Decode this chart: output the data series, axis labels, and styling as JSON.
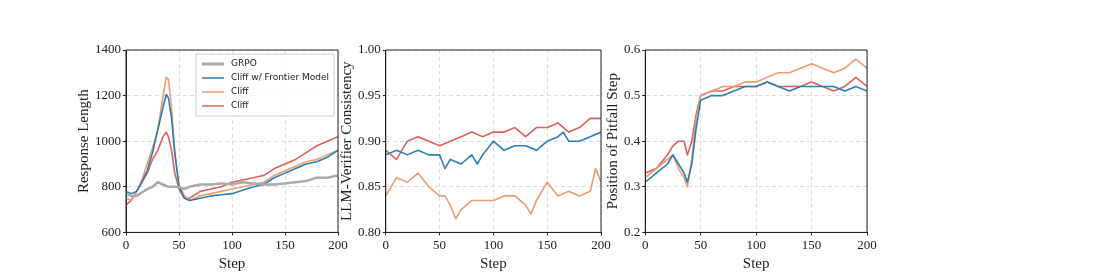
{
  "chart_data": [
    {
      "type": "line",
      "xlabel": "Step",
      "ylabel": "Response Length",
      "xlim": [
        0,
        200
      ],
      "xticks": [
        0,
        50,
        100,
        150,
        200
      ],
      "ylim": [
        600,
        1400
      ],
      "yticks": [
        600,
        800,
        1000,
        1200,
        1400
      ],
      "grid": true,
      "legend": "top right",
      "marker": "none",
      "line_style": "solid",
      "series": [
        {
          "name": "GRPO",
          "color": "#aaaaaa",
          "x": [
            0,
            5,
            10,
            15,
            20,
            25,
            30,
            35,
            40,
            45,
            50,
            55,
            60,
            70,
            80,
            90,
            100,
            110,
            120,
            130,
            140,
            150,
            160,
            170,
            180,
            190,
            200
          ],
          "values": [
            770,
            760,
            760,
            775,
            790,
            800,
            820,
            810,
            800,
            800,
            800,
            790,
            800,
            810,
            810,
            815,
            810,
            820,
            815,
            810,
            810,
            815,
            820,
            825,
            840,
            840,
            850
          ]
        },
        {
          "name": "Cliff w/ Frontier Model",
          "color": "#2a7fb5",
          "x": [
            0,
            5,
            10,
            15,
            20,
            25,
            30,
            35,
            38,
            40,
            43,
            46,
            50,
            55,
            60,
            70,
            80,
            90,
            100,
            110,
            120,
            130,
            140,
            150,
            160,
            170,
            180,
            190,
            200
          ],
          "values": [
            780,
            770,
            780,
            820,
            870,
            950,
            1050,
            1150,
            1205,
            1190,
            1100,
            950,
            800,
            750,
            740,
            750,
            760,
            765,
            770,
            785,
            800,
            810,
            840,
            860,
            880,
            900,
            910,
            930,
            960
          ]
        },
        {
          "name": "Cliff",
          "color": "#ee9b6e",
          "x": [
            0,
            5,
            10,
            15,
            20,
            25,
            30,
            35,
            38,
            40,
            43,
            46,
            50,
            55,
            60,
            70,
            80,
            90,
            100,
            110,
            120,
            130,
            140,
            150,
            160,
            170,
            180,
            190,
            200
          ],
          "values": [
            750,
            740,
            780,
            830,
            900,
            970,
            1050,
            1200,
            1280,
            1270,
            1150,
            950,
            810,
            760,
            740,
            760,
            770,
            780,
            790,
            800,
            810,
            820,
            850,
            870,
            890,
            910,
            920,
            940,
            960
          ]
        },
        {
          "name": "Cliff",
          "color": "#e0605f",
          "x": [
            0,
            5,
            10,
            15,
            20,
            25,
            30,
            35,
            38,
            40,
            43,
            46,
            50,
            55,
            60,
            70,
            80,
            90,
            100,
            110,
            120,
            130,
            140,
            150,
            160,
            170,
            180,
            190,
            200
          ],
          "values": [
            720,
            740,
            780,
            820,
            860,
            920,
            960,
            1020,
            1040,
            1020,
            960,
            860,
            790,
            750,
            750,
            780,
            790,
            800,
            820,
            830,
            840,
            850,
            880,
            900,
            920,
            950,
            980,
            1000,
            1020
          ]
        }
      ]
    },
    {
      "type": "line",
      "xlabel": "Step",
      "ylabel": "LLM-Verifier Consistency",
      "xlim": [
        0,
        200
      ],
      "xticks": [
        0,
        50,
        100,
        150,
        200
      ],
      "ylim": [
        0.8,
        1.0
      ],
      "yticks": [
        {
          "value": 0.8,
          "label": "0.80"
        },
        {
          "value": 0.85,
          "label": "0.85"
        },
        {
          "value": 0.9,
          "label": "0.90"
        },
        {
          "value": 0.95,
          "label": "0.95"
        },
        {
          "value": 1.0,
          "label": "1.00"
        }
      ],
      "grid": true,
      "marker": "none",
      "line_style": "solid",
      "series": [
        {
          "color": "#2a7fb5",
          "x": [
            0,
            10,
            20,
            30,
            40,
            50,
            55,
            60,
            70,
            80,
            85,
            90,
            100,
            110,
            120,
            130,
            140,
            150,
            160,
            165,
            170,
            180,
            190,
            200
          ],
          "values": [
            0.885,
            0.89,
            0.885,
            0.89,
            0.885,
            0.885,
            0.87,
            0.88,
            0.875,
            0.885,
            0.875,
            0.885,
            0.9,
            0.89,
            0.895,
            0.895,
            0.89,
            0.9,
            0.905,
            0.91,
            0.9,
            0.9,
            0.905,
            0.91
          ]
        },
        {
          "color": "#ee9b6e",
          "x": [
            0,
            10,
            20,
            30,
            40,
            50,
            55,
            60,
            65,
            70,
            80,
            90,
            100,
            110,
            120,
            130,
            135,
            140,
            150,
            160,
            170,
            180,
            190,
            195,
            200
          ],
          "values": [
            0.84,
            0.86,
            0.855,
            0.865,
            0.85,
            0.84,
            0.84,
            0.83,
            0.815,
            0.825,
            0.835,
            0.835,
            0.835,
            0.84,
            0.84,
            0.83,
            0.82,
            0.835,
            0.855,
            0.84,
            0.845,
            0.84,
            0.845,
            0.87,
            0.855
          ]
        },
        {
          "color": "#e0605f",
          "x": [
            0,
            10,
            20,
            30,
            40,
            50,
            60,
            70,
            80,
            90,
            100,
            110,
            120,
            130,
            140,
            150,
            160,
            170,
            180,
            190,
            200
          ],
          "values": [
            0.89,
            0.88,
            0.9,
            0.905,
            0.9,
            0.895,
            0.9,
            0.905,
            0.91,
            0.905,
            0.91,
            0.91,
            0.915,
            0.905,
            0.915,
            0.915,
            0.92,
            0.91,
            0.915,
            0.925,
            0.925
          ]
        }
      ]
    },
    {
      "type": "line",
      "xlabel": "Step",
      "ylabel": "Position of Pitfall Step",
      "xlim": [
        0,
        200
      ],
      "xticks": [
        0,
        50,
        100,
        150,
        200
      ],
      "ylim": [
        0.2,
        0.6
      ],
      "yticks": [
        0.2,
        0.3,
        0.4,
        0.5,
        0.6
      ],
      "grid": true,
      "marker": "none",
      "line_style": "solid",
      "series": [
        {
          "color": "#2a7fb5",
          "x": [
            0,
            10,
            20,
            25,
            30,
            35,
            38,
            42,
            46,
            50,
            60,
            70,
            80,
            90,
            100,
            110,
            120,
            130,
            140,
            150,
            160,
            170,
            180,
            190,
            200
          ],
          "values": [
            0.31,
            0.33,
            0.35,
            0.37,
            0.35,
            0.33,
            0.31,
            0.35,
            0.43,
            0.49,
            0.5,
            0.5,
            0.51,
            0.52,
            0.52,
            0.53,
            0.52,
            0.51,
            0.52,
            0.52,
            0.52,
            0.52,
            0.51,
            0.52,
            0.51
          ]
        },
        {
          "color": "#ee9b6e",
          "x": [
            0,
            10,
            20,
            25,
            30,
            35,
            38,
            42,
            46,
            50,
            60,
            70,
            80,
            90,
            100,
            110,
            120,
            130,
            140,
            150,
            160,
            170,
            180,
            190,
            200
          ],
          "values": [
            0.32,
            0.34,
            0.36,
            0.37,
            0.34,
            0.32,
            0.3,
            0.36,
            0.45,
            0.5,
            0.51,
            0.52,
            0.52,
            0.53,
            0.53,
            0.54,
            0.55,
            0.55,
            0.56,
            0.57,
            0.56,
            0.55,
            0.56,
            0.58,
            0.56
          ]
        },
        {
          "color": "#e0605f",
          "x": [
            0,
            10,
            20,
            25,
            30,
            35,
            38,
            42,
            46,
            50,
            60,
            70,
            80,
            90,
            100,
            110,
            120,
            130,
            140,
            150,
            160,
            170,
            180,
            190,
            200
          ],
          "values": [
            0.33,
            0.34,
            0.37,
            0.39,
            0.4,
            0.4,
            0.37,
            0.4,
            0.46,
            0.5,
            0.51,
            0.51,
            0.52,
            0.52,
            0.52,
            0.53,
            0.52,
            0.52,
            0.52,
            0.53,
            0.52,
            0.51,
            0.52,
            0.54,
            0.52
          ]
        }
      ]
    }
  ]
}
